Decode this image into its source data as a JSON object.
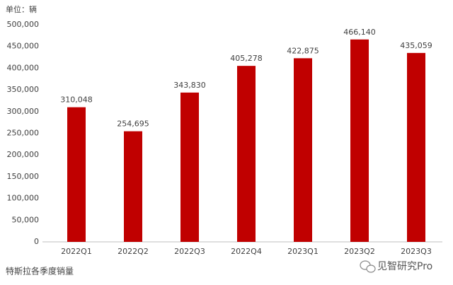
{
  "chart_data": {
    "type": "bar",
    "unit_label": "单位：辆",
    "caption": "特斯拉各季度销量",
    "watermark": "见智研究Pro",
    "categories": [
      "2022Q1",
      "2022Q2",
      "2022Q3",
      "2022Q4",
      "2023Q1",
      "2023Q2",
      "2023Q3"
    ],
    "values": [
      310048,
      254695,
      343830,
      405278,
      422875,
      466140,
      435059
    ],
    "value_labels": [
      "310,048",
      "254,695",
      "343,830",
      "405,278",
      "422,875",
      "466,140",
      "435,059"
    ],
    "color": "#c00000",
    "ylim": [
      0,
      500000
    ],
    "yticks": [
      0,
      {
        "value": 50000,
        "label": "50,000"
      },
      {
        "value": 100000,
        "label": "100,000"
      },
      {
        "value": 150000,
        "label": "150,000"
      },
      {
        "value": 200000,
        "label": "200,000"
      },
      {
        "value": 250000,
        "label": "250,000"
      },
      {
        "value": 300000,
        "label": "300,000"
      },
      {
        "value": 350000,
        "label": "350,000"
      },
      {
        "value": 400000,
        "label": "400,000"
      },
      {
        "value": 450000,
        "label": "450,000"
      },
      {
        "value": 500000,
        "label": "500,000"
      }
    ],
    "grid": false
  }
}
